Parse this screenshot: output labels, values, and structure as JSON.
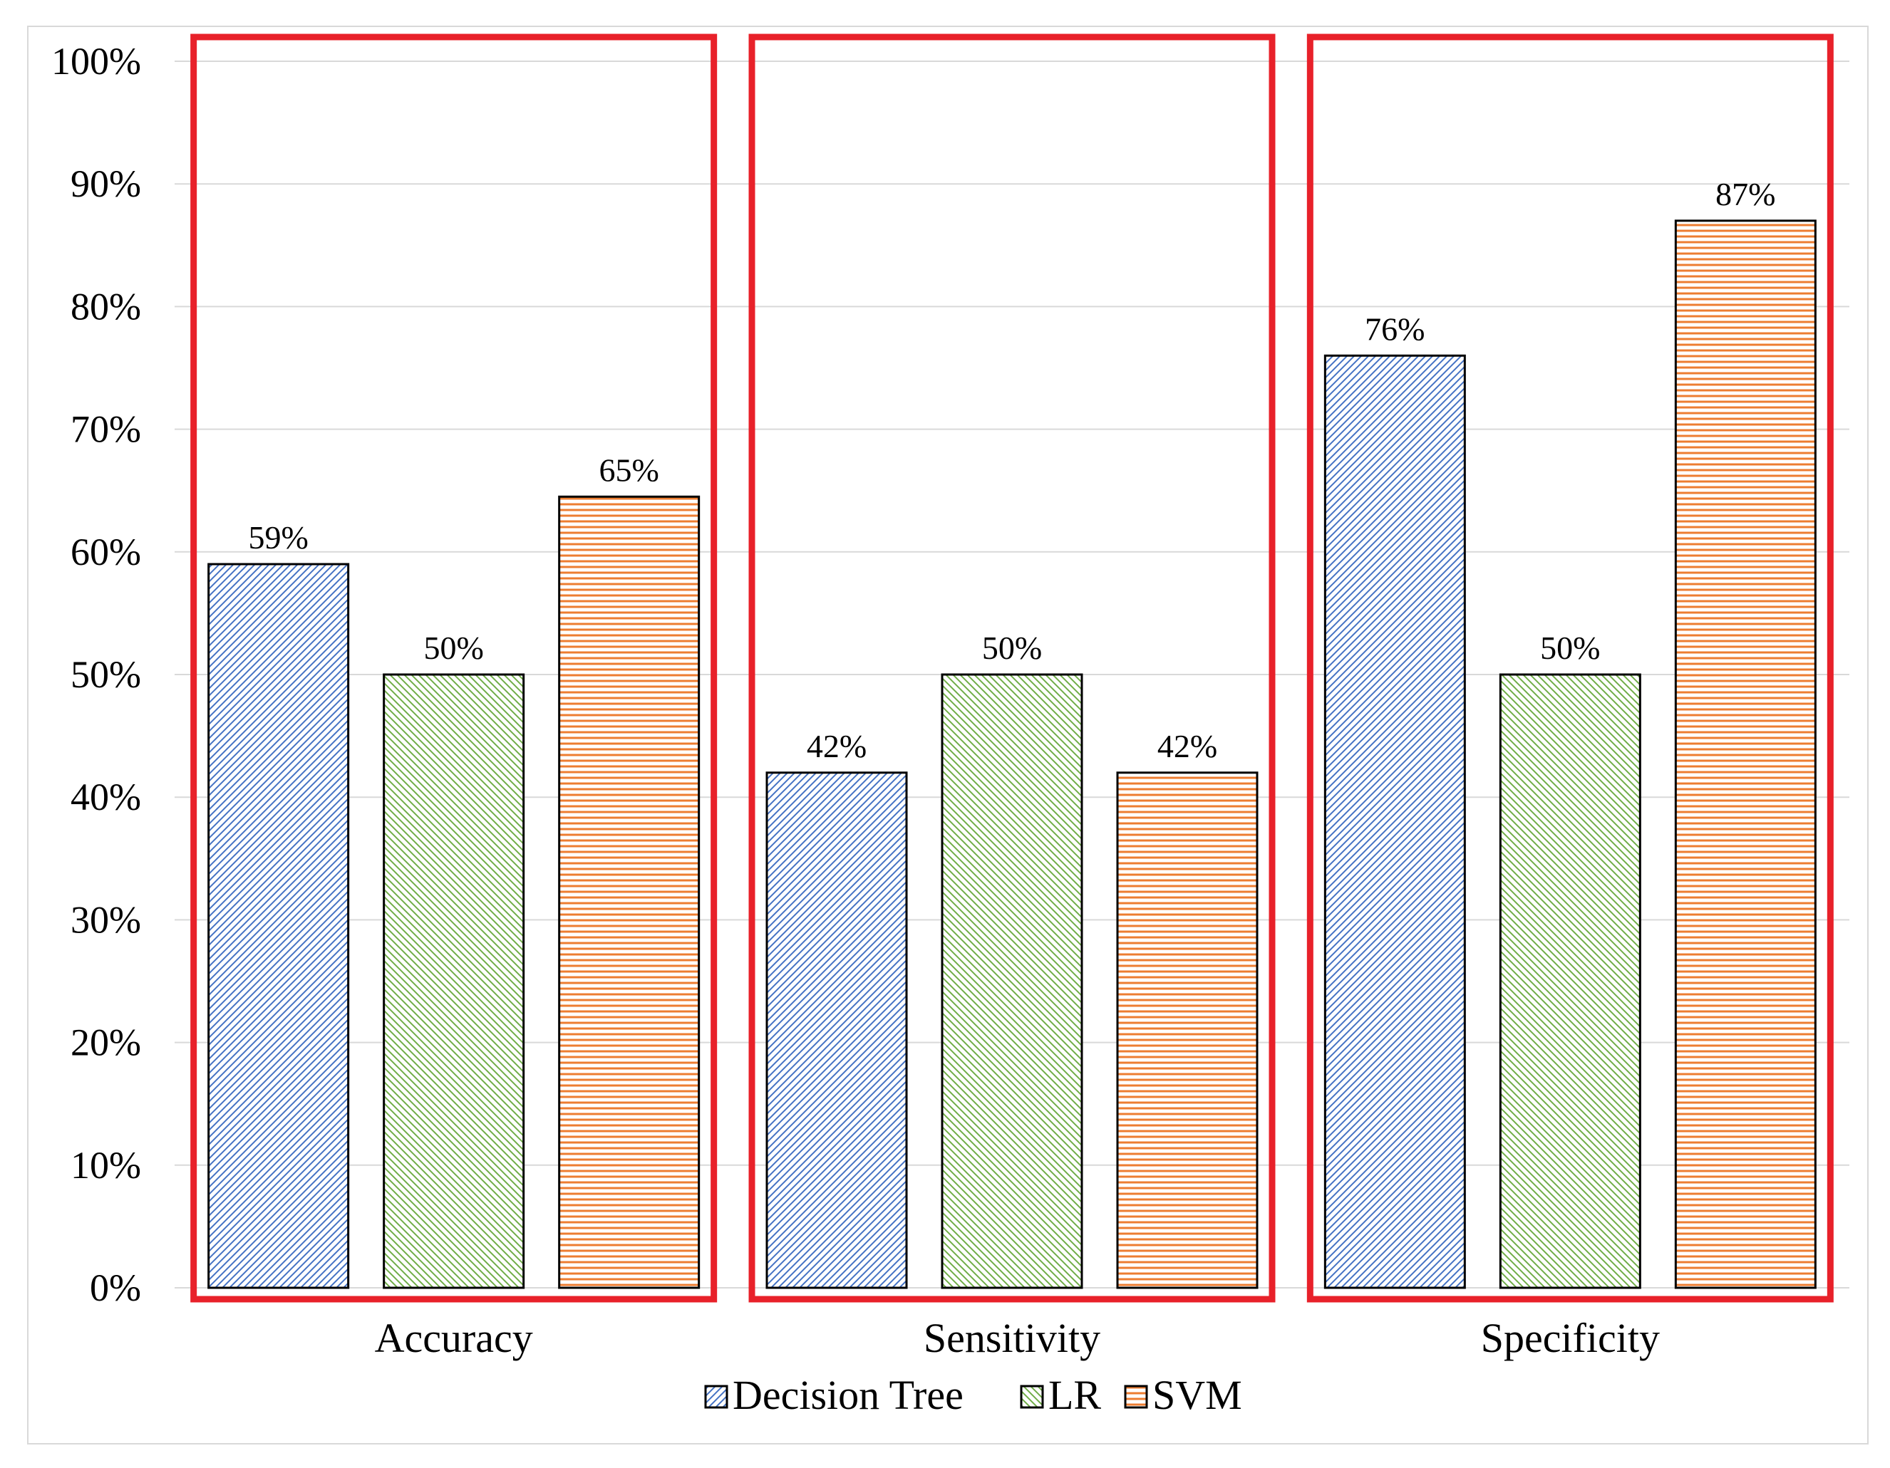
{
  "chart_data": {
    "type": "bar",
    "title": "",
    "xlabel": "",
    "ylabel": "",
    "ylim": [
      0,
      100
    ],
    "y_ticks": [
      "0%",
      "10%",
      "20%",
      "30%",
      "40%",
      "50%",
      "60%",
      "70%",
      "80%",
      "90%",
      "100%"
    ],
    "grid": true,
    "legend_position": "bottom",
    "categories": [
      "Accuracy",
      "Sensitivity",
      "Specificity"
    ],
    "series": [
      {
        "name": "Decision Tree",
        "values": [
          59,
          42,
          76
        ],
        "labels": [
          "59%",
          "42%",
          "76%"
        ],
        "color": "#4472c4",
        "pattern": "diagonal-up"
      },
      {
        "name": "LR",
        "values": [
          50,
          50,
          50
        ],
        "labels": [
          "50%",
          "50%",
          "50%"
        ],
        "color": "#70ad47",
        "pattern": "diagonal-down"
      },
      {
        "name": "SVM",
        "values": [
          64.5,
          42,
          87
        ],
        "labels": [
          "65%",
          "42%",
          "87%"
        ],
        "color": "#ed7d31",
        "pattern": "horizontal"
      }
    ],
    "annotations": {
      "highlight_boxes": [
        "Accuracy",
        "Sensitivity",
        "Specificity"
      ],
      "highlight_color": "#e8212a"
    }
  }
}
